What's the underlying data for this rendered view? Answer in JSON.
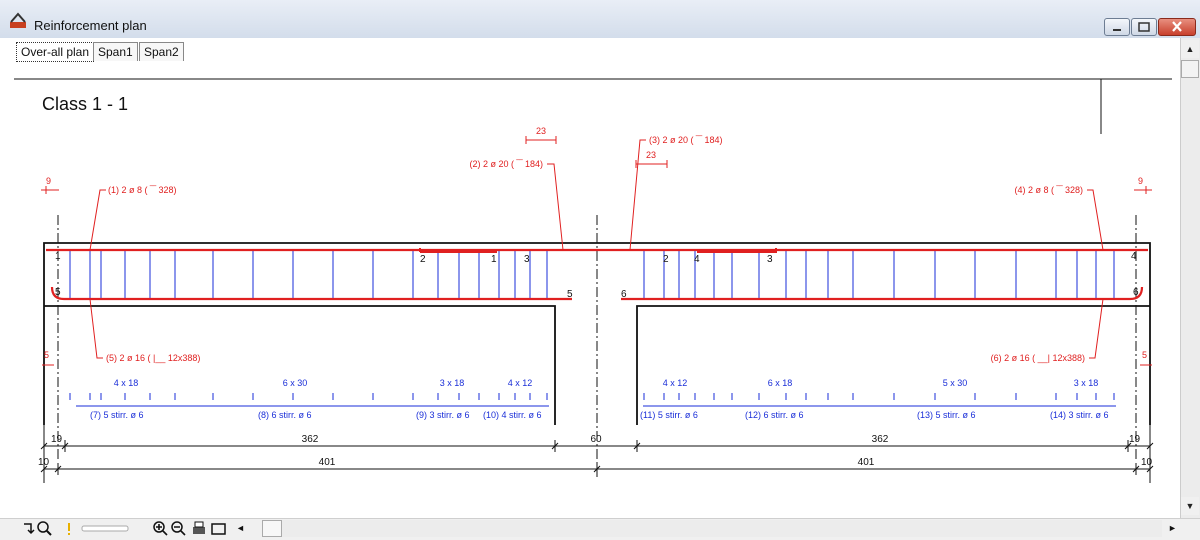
{
  "window": {
    "title": "Reinforcement plan"
  },
  "tabs": [
    {
      "label": "Over-all plan",
      "active": true
    },
    {
      "label": "Span1",
      "active": false
    },
    {
      "label": "Span2",
      "active": false
    }
  ],
  "drawing": {
    "class_title": "Class 1 - 1",
    "colors": {
      "rebar": "#e02020",
      "stirrup": "#1a2ed8",
      "outline": "#111111"
    },
    "bars": [
      {
        "label": "(1) 2 ø 8 ( ‾‾ 328)"
      },
      {
        "label": "(2) 2 ø 20 ( ‾‾ 184)"
      },
      {
        "label": "(3) 2 ø 20 ( ‾‾ 184)"
      },
      {
        "label": "(4) 2 ø 8 ( ‾‾ 328)"
      },
      {
        "label": "(5) 2 ø 16 ( |__ 12x388)"
      },
      {
        "label": "(6) 2 ø 16 ( __| 12x388)"
      }
    ],
    "anchor_lengths": [
      "9",
      "23",
      "23",
      "9",
      "5",
      "5"
    ],
    "section_marks": [
      "1",
      "2",
      "1",
      "3",
      "2",
      "4",
      "3",
      "4",
      "5",
      "5",
      "6",
      "6"
    ],
    "stirrup_groups": [
      {
        "spacing": "4 x 18",
        "label": "(7) 5 stirr. ø 6"
      },
      {
        "spacing": "6 x 30",
        "label": "(8) 6 stirr. ø 6"
      },
      {
        "spacing": "3 x 18",
        "label": "(9) 3 stirr. ø 6"
      },
      {
        "spacing": "4 x 12",
        "label": "(10) 4 stirr. ø 6"
      },
      {
        "spacing": "4 x 12",
        "label": "(11) 5 stirr. ø 6"
      },
      {
        "spacing": "6 x 18",
        "label": "(12) 6 stirr. ø 6"
      },
      {
        "spacing": "5 x 30",
        "label": "(13) 5 stirr. ø 6"
      },
      {
        "spacing": "3 x 18",
        "label": "(14) 3 stirr. ø 6"
      }
    ],
    "dimensions": {
      "row1": [
        "19",
        "362",
        "60",
        "362",
        "19"
      ],
      "row2": [
        "10",
        "401",
        "401",
        "10"
      ]
    }
  },
  "toolbar": {
    "icons": [
      "rotate-icon",
      "zoom-fit-icon",
      "warning-icon",
      "zoom-in-icon",
      "zoom-out-icon",
      "print-icon",
      "frame-icon"
    ],
    "arrow_left": "◄",
    "arrow_right": "►",
    "arrow_up": "▲",
    "arrow_down": "▼"
  }
}
